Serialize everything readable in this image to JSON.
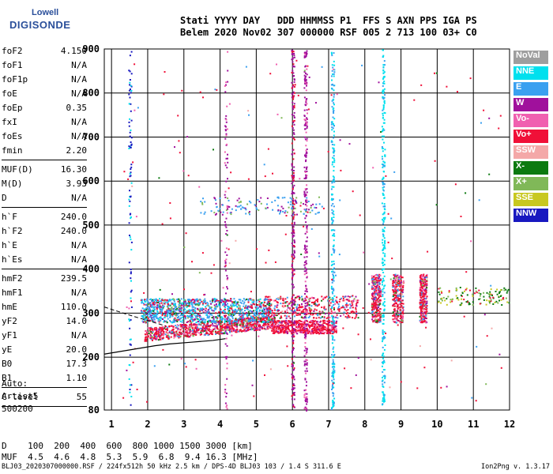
{
  "logo": {
    "line1": "Lowell",
    "line2": "DIGISONDE"
  },
  "header": {
    "line1": "Stati YYYY DAY   DDD HHMMSS P1  FFS S AXN PPS IGA PS",
    "line2": "Belem 2020 Nov02 307 000000 RSF 005 2 713 100 03+ C0"
  },
  "params": {
    "group1": [
      {
        "k": "foF2",
        "v": "4.150"
      },
      {
        "k": "foF1",
        "v": "N/A"
      },
      {
        "k": "foF1p",
        "v": "N/A"
      },
      {
        "k": "foE",
        "v": "N/A"
      },
      {
        "k": "foEp",
        "v": "0.35"
      },
      {
        "k": "fxI",
        "v": "N/A"
      },
      {
        "k": "foEs",
        "v": "N/A"
      },
      {
        "k": "fmin",
        "v": "2.20"
      }
    ],
    "group2": [
      {
        "k": "MUF(D)",
        "v": "16.30"
      },
      {
        "k": "M(D)",
        "v": "3.93"
      },
      {
        "k": "D",
        "v": "N/A"
      }
    ],
    "group3": [
      {
        "k": "h`F",
        "v": "240.0"
      },
      {
        "k": "h`F2",
        "v": "240.0"
      },
      {
        "k": "h`E",
        "v": "N/A"
      },
      {
        "k": "h`Es",
        "v": "N/A"
      }
    ],
    "group4": [
      {
        "k": "hmF2",
        "v": "239.5"
      },
      {
        "k": "hmF1",
        "v": "N/A"
      },
      {
        "k": "hmE",
        "v": "110.0"
      },
      {
        "k": "yF2",
        "v": "14.0"
      },
      {
        "k": "yF1",
        "v": "N/A"
      },
      {
        "k": "yE",
        "v": "20.0"
      },
      {
        "k": "B0",
        "v": "17.3"
      },
      {
        "k": "B1",
        "v": "1.10"
      }
    ],
    "group5": [
      {
        "k": "C-level",
        "v": "55"
      }
    ]
  },
  "auto": {
    "lines": [
      "Auto:",
      "Artist5",
      "500200"
    ]
  },
  "legend": [
    {
      "label": "NoVal",
      "color": "#9e9e9e"
    },
    {
      "label": "NNE",
      "color": "#00e0ee"
    },
    {
      "label": "E",
      "color": "#3aa0f0"
    },
    {
      "label": "W",
      "color": "#a0109c"
    },
    {
      "label": "Vo-",
      "color": "#f060b0"
    },
    {
      "label": "Vo+",
      "color": "#f01038"
    },
    {
      "label": "SSW",
      "color": "#f4a8a8"
    },
    {
      "label": "X-",
      "color": "#0c7a10"
    },
    {
      "label": "X+",
      "color": "#80b858"
    },
    {
      "label": "SSE",
      "color": "#c8c820"
    },
    {
      "label": "NNW",
      "color": "#1818c0"
    }
  ],
  "chart_data": {
    "type": "scatter",
    "xlim": [
      0.8,
      12
    ],
    "ylim": [
      80,
      900
    ],
    "x_ticks": [
      1,
      2,
      3,
      4,
      5,
      6,
      7,
      8,
      9,
      10,
      11,
      12
    ],
    "y_ticks": [
      80,
      200,
      300,
      400,
      500,
      600,
      700,
      800,
      900
    ],
    "grid": true,
    "trace": {
      "f": [
        0.8,
        2.2,
        2.6,
        3.2,
        3.8,
        4.15
      ],
      "h": [
        207,
        226,
        230,
        234,
        238,
        242
      ]
    },
    "trace_dashed": {
      "f": [
        0.8,
        1.4,
        2.0,
        2.5
      ],
      "h": [
        314,
        298,
        283,
        271
      ]
    }
  },
  "dm_table": {
    "line1": "D    100  200  400  600  800 1000 1500 3000 [km]",
    "line2": "MUF  4.5  4.6  4.8  5.3  5.9  6.8  9.4 16.3 [MHz]"
  },
  "footer": {
    "left": "BLJ03_2020307000000.RSF / 224fx512h 50 kHz 2.5 km / DPS-4D BLJ03 103 / 1.4 S 311.6 E",
    "right": "Ion2Png v. 1.3.17"
  }
}
